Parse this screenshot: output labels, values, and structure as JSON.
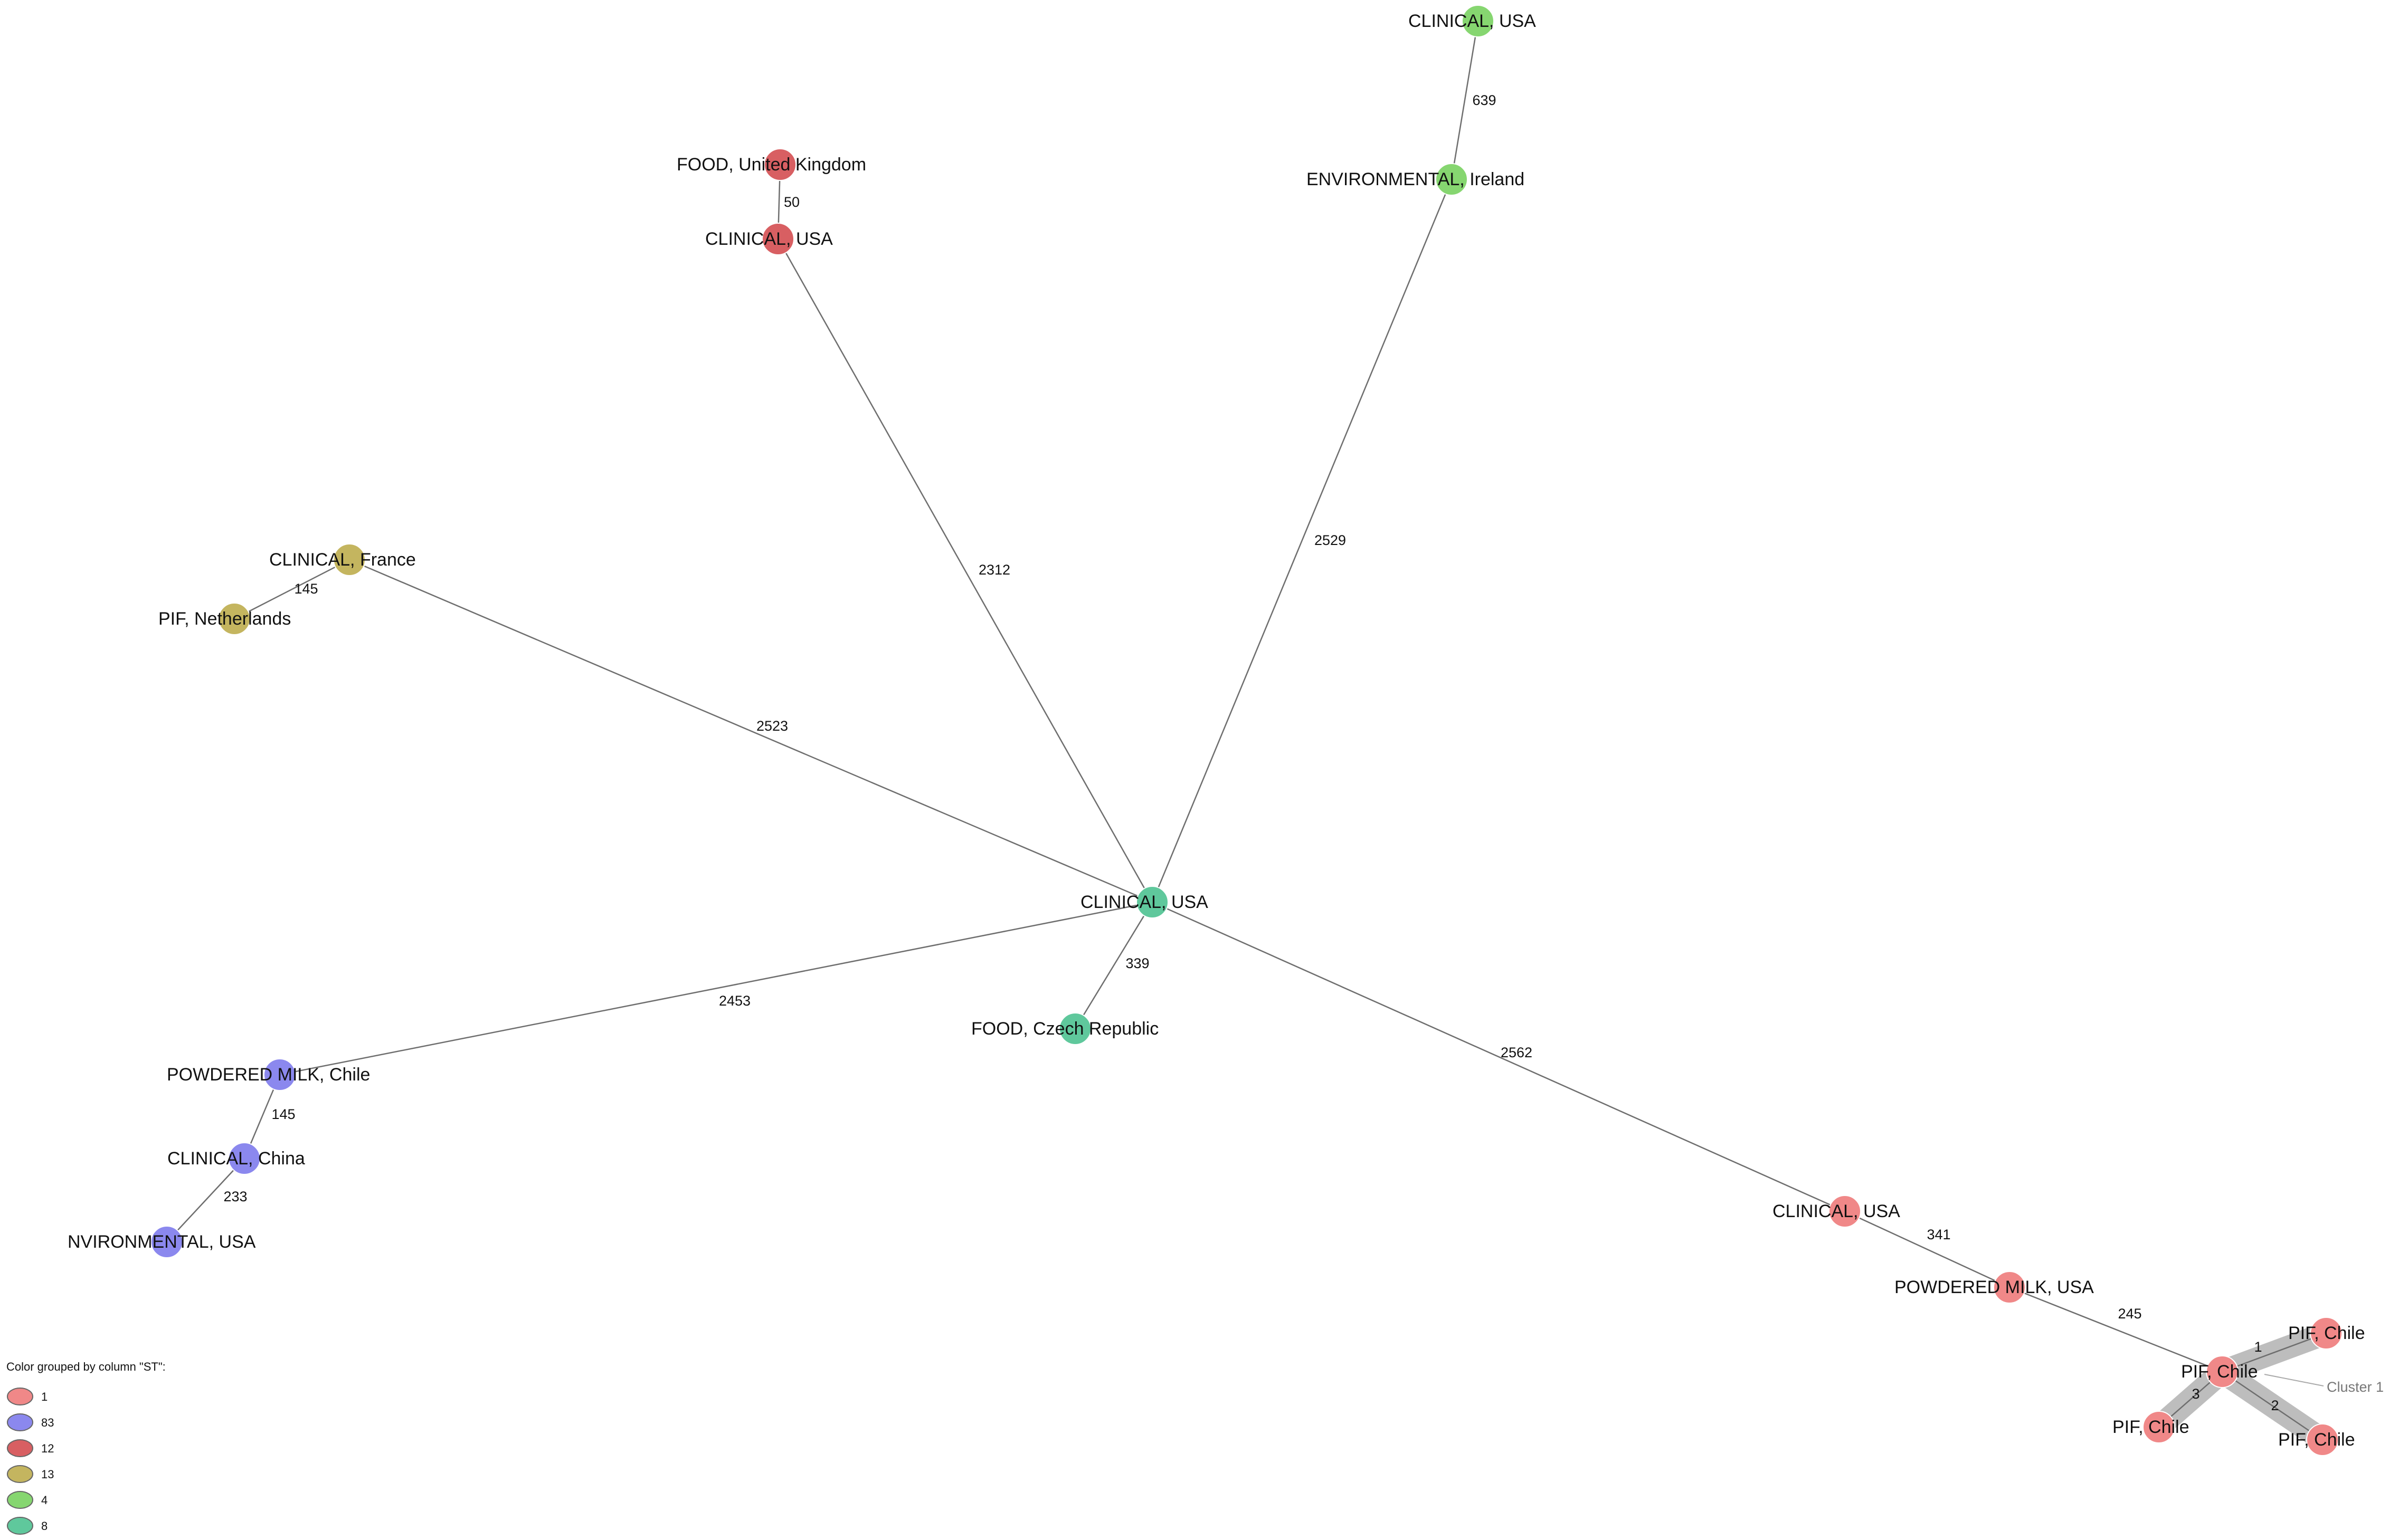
{
  "legend": {
    "title": "Color grouped by column \"ST\":",
    "entries": [
      {
        "label": "1",
        "color": "#f08888"
      },
      {
        "label": "83",
        "color": "#8b88ee"
      },
      {
        "label": "12",
        "color": "#d85f62"
      },
      {
        "label": "13",
        "color": "#c4b55f"
      },
      {
        "label": "4",
        "color": "#86d670"
      },
      {
        "label": "8",
        "color": "#5fc89c"
      }
    ]
  },
  "nodes": [
    {
      "id": "n1",
      "label": "CLINICAL, USA",
      "group": "8"
    },
    {
      "id": "n2",
      "label": "FOOD, Czech Republic",
      "group": "8"
    },
    {
      "id": "n3",
      "label": "FOOD, United Kingdom",
      "group": "12"
    },
    {
      "id": "n4",
      "label": "CLINICAL, USA",
      "group": "12"
    },
    {
      "id": "n5",
      "label": "CLINICAL, USA",
      "group": "4"
    },
    {
      "id": "n6",
      "label": "ENVIRONMENTAL, Ireland",
      "group": "4"
    },
    {
      "id": "n7",
      "label": "CLINICAL, France",
      "group": "13"
    },
    {
      "id": "n8",
      "label": "PIF, Netherlands",
      "group": "13"
    },
    {
      "id": "n9",
      "label": "POWDERED MILK, Chile",
      "group": "83"
    },
    {
      "id": "n10",
      "label": "CLINICAL, China",
      "group": "83"
    },
    {
      "id": "n11",
      "label": "NVIRONMENTAL, USA",
      "group": "83"
    },
    {
      "id": "n12",
      "label": "CLINICAL, USA",
      "group": "1"
    },
    {
      "id": "n13",
      "label": "POWDERED MILK, USA",
      "group": "1"
    },
    {
      "id": "n14",
      "label": "PIF, Chile",
      "group": "1"
    },
    {
      "id": "n15",
      "label": "PIF, Chile",
      "group": "1"
    },
    {
      "id": "n16",
      "label": "PIF, Chile",
      "group": "1"
    },
    {
      "id": "n17",
      "label": "PIF, Chile",
      "group": "1"
    }
  ],
  "edges": [
    {
      "from": "n3",
      "to": "n4",
      "label": "50"
    },
    {
      "from": "n4",
      "to": "n1",
      "label": "2312"
    },
    {
      "from": "n5",
      "to": "n6",
      "label": "639"
    },
    {
      "from": "n6",
      "to": "n1",
      "label": "2529"
    },
    {
      "from": "n7",
      "to": "n8",
      "label": "145"
    },
    {
      "from": "n7",
      "to": "n1",
      "label": "2523"
    },
    {
      "from": "n1",
      "to": "n2",
      "label": "339"
    },
    {
      "from": "n1",
      "to": "n9",
      "label": "2453"
    },
    {
      "from": "n9",
      "to": "n10",
      "label": "145"
    },
    {
      "from": "n10",
      "to": "n11",
      "label": "233"
    },
    {
      "from": "n1",
      "to": "n12",
      "label": "2562"
    },
    {
      "from": "n12",
      "to": "n13",
      "label": "341"
    },
    {
      "from": "n13",
      "to": "n14",
      "label": "245"
    },
    {
      "from": "n14",
      "to": "n15",
      "label": "1",
      "cluster": true
    },
    {
      "from": "n14",
      "to": "n16",
      "label": "3",
      "cluster": true
    },
    {
      "from": "n14",
      "to": "n17",
      "label": "2",
      "cluster": true
    }
  ],
  "cluster": {
    "label": "Cluster 1"
  }
}
